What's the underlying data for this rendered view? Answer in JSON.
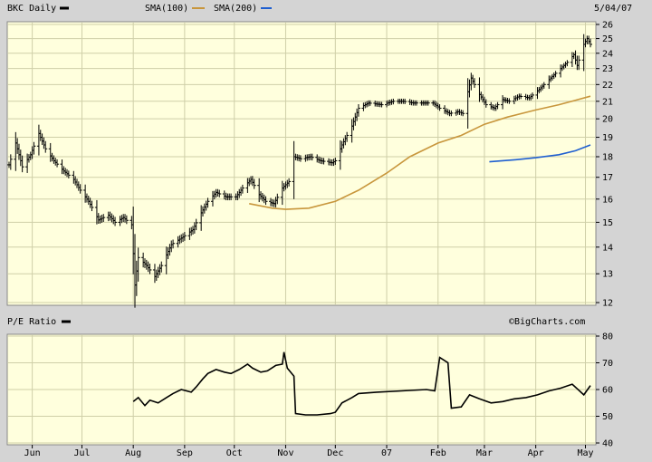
{
  "header": {
    "symbol_label": "BKC Daily",
    "sma100_label": "SMA(100)",
    "sma200_label": "SMA(200)",
    "date_label": "5/04/07"
  },
  "lower_panel": {
    "title": "P/E Ratio",
    "watermark": "©BigCharts.com"
  },
  "colors": {
    "plot_background": "#ffffdd",
    "grid": "#cfcfa8",
    "panel_background": "#d4d4d4",
    "price_bars": "#000000",
    "sma100": "#c8963c",
    "sma200": "#1f5fd0",
    "pe_line": "#000000"
  },
  "chart_data": [
    {
      "type": "ohlc",
      "title": "BKC Daily",
      "x_axis": {
        "type": "date",
        "range": [
          "2006-05-18",
          "2007-05-04"
        ],
        "tick_labels": [
          "Jun",
          "Jul",
          "Aug",
          "Sep",
          "Oct",
          "Nov",
          "Dec",
          "07",
          "Feb",
          "Mar",
          "Apr",
          "May"
        ],
        "tick_dates": [
          "2006-06-01",
          "2006-07-01",
          "2006-08-01",
          "2006-09-01",
          "2006-10-01",
          "2006-11-01",
          "2006-12-01",
          "2007-01-01",
          "2007-02-01",
          "2007-03-01",
          "2007-04-01",
          "2007-05-01"
        ]
      },
      "y_axis": {
        "scale": "log",
        "range": [
          12,
          26
        ],
        "position": "right",
        "tick_labels": [
          12,
          13,
          14,
          15,
          16,
          17,
          18,
          19,
          20,
          21,
          22,
          23,
          24,
          25,
          26
        ]
      },
      "grid": true,
      "legend": "top",
      "series": [
        {
          "name": "BKC Daily",
          "style": "ohlc-bars",
          "key_points": [
            [
              "2006-05-18",
              17.6
            ],
            [
              "2006-05-22",
              18.7
            ],
            [
              "2006-05-26",
              17.5
            ],
            [
              "2006-05-31",
              18.1
            ],
            [
              "2006-06-05",
              19.2
            ],
            [
              "2006-06-09",
              18.4
            ],
            [
              "2006-06-14",
              17.8
            ],
            [
              "2006-06-20",
              17.3
            ],
            [
              "2006-06-26",
              16.9
            ],
            [
              "2006-06-30",
              16.4
            ],
            [
              "2006-07-05",
              15.9
            ],
            [
              "2006-07-11",
              15.1
            ],
            [
              "2006-07-17",
              15.3
            ],
            [
              "2006-07-21",
              15.0
            ],
            [
              "2006-07-26",
              15.2
            ],
            [
              "2006-07-31",
              14.9
            ],
            [
              "2006-08-02",
              12.6
            ],
            [
              "2006-08-04",
              13.6
            ],
            [
              "2006-08-09",
              13.3
            ],
            [
              "2006-08-14",
              12.9
            ],
            [
              "2006-08-18",
              13.3
            ],
            [
              "2006-08-24",
              14.1
            ],
            [
              "2006-08-31",
              14.4
            ],
            [
              "2006-09-06",
              14.7
            ],
            [
              "2006-09-11",
              15.4
            ],
            [
              "2006-09-15",
              15.9
            ],
            [
              "2006-09-20",
              16.3
            ],
            [
              "2006-09-26",
              16.1
            ],
            [
              "2006-10-02",
              16.1
            ],
            [
              "2006-10-06",
              16.5
            ],
            [
              "2006-10-11",
              16.9
            ],
            [
              "2006-10-16",
              16.2
            ],
            [
              "2006-10-20",
              15.9
            ],
            [
              "2006-10-25",
              15.8
            ],
            [
              "2006-10-30",
              16.5
            ],
            [
              "2006-11-03",
              16.8
            ],
            [
              "2006-11-06",
              18.0
            ],
            [
              "2006-11-10",
              17.9
            ],
            [
              "2006-11-16",
              18.0
            ],
            [
              "2006-11-22",
              17.8
            ],
            [
              "2006-11-29",
              17.7
            ],
            [
              "2006-12-01",
              17.8
            ],
            [
              "2006-12-05",
              18.6
            ],
            [
              "2006-12-11",
              19.6
            ],
            [
              "2006-12-15",
              20.6
            ],
            [
              "2006-12-21",
              20.9
            ],
            [
              "2006-12-29",
              20.8
            ],
            [
              "2007-01-05",
              21.0
            ],
            [
              "2007-01-11",
              21.0
            ],
            [
              "2007-01-17",
              20.9
            ],
            [
              "2007-01-23",
              20.9
            ],
            [
              "2007-01-29",
              20.9
            ],
            [
              "2007-02-02",
              20.6
            ],
            [
              "2007-02-08",
              20.3
            ],
            [
              "2007-02-13",
              20.4
            ],
            [
              "2007-02-16",
              20.3
            ],
            [
              "2007-02-21",
              22.4
            ],
            [
              "2007-02-26",
              21.4
            ],
            [
              "2007-03-02",
              20.8
            ],
            [
              "2007-03-07",
              20.6
            ],
            [
              "2007-03-12",
              21.1
            ],
            [
              "2007-03-16",
              21.0
            ],
            [
              "2007-03-22",
              21.3
            ],
            [
              "2007-03-28",
              21.2
            ],
            [
              "2007-04-03",
              21.7
            ],
            [
              "2007-04-10",
              22.4
            ],
            [
              "2007-04-16",
              23.0
            ],
            [
              "2007-04-20",
              23.4
            ],
            [
              "2007-04-24",
              23.9
            ],
            [
              "2007-04-26",
              23.2
            ],
            [
              "2007-04-30",
              24.6
            ],
            [
              "2007-05-02",
              25.0
            ],
            [
              "2007-05-04",
              24.6
            ]
          ]
        },
        {
          "name": "SMA(100)",
          "style": "line",
          "points": [
            [
              "2006-10-10",
              15.8
            ],
            [
              "2006-10-24",
              15.6
            ],
            [
              "2006-11-01",
              15.55
            ],
            [
              "2006-11-15",
              15.6
            ],
            [
              "2006-12-01",
              15.9
            ],
            [
              "2006-12-15",
              16.4
            ],
            [
              "2007-01-01",
              17.2
            ],
            [
              "2007-01-15",
              18.0
            ],
            [
              "2007-02-01",
              18.7
            ],
            [
              "2007-02-15",
              19.1
            ],
            [
              "2007-03-01",
              19.7
            ],
            [
              "2007-03-15",
              20.1
            ],
            [
              "2007-04-01",
              20.5
            ],
            [
              "2007-04-15",
              20.8
            ],
            [
              "2007-05-04",
              21.3
            ]
          ]
        },
        {
          "name": "SMA(200)",
          "style": "line",
          "points": [
            [
              "2007-03-04",
              17.75
            ],
            [
              "2007-03-20",
              17.85
            ],
            [
              "2007-04-01",
              17.95
            ],
            [
              "2007-04-15",
              18.1
            ],
            [
              "2007-04-25",
              18.3
            ],
            [
              "2007-05-04",
              18.6
            ]
          ]
        }
      ]
    },
    {
      "type": "line",
      "title": "P/E Ratio",
      "x_axis": {
        "type": "date",
        "range": [
          "2006-05-18",
          "2007-05-04"
        ],
        "tick_labels": [
          "Jun",
          "Jul",
          "Aug",
          "Sep",
          "Oct",
          "Nov",
          "Dec",
          "07",
          "Feb",
          "Mar",
          "Apr",
          "May"
        ]
      },
      "y_axis": {
        "range": [
          40,
          80
        ],
        "position": "right",
        "tick_labels": [
          40,
          50,
          60,
          70,
          80
        ]
      },
      "grid": true,
      "series": [
        {
          "name": "P/E Ratio",
          "points": [
            [
              "2006-08-01",
              55.5
            ],
            [
              "2006-08-04",
              57.0
            ],
            [
              "2006-08-08",
              54.0
            ],
            [
              "2006-08-11",
              56.0
            ],
            [
              "2006-08-16",
              55.0
            ],
            [
              "2006-08-21",
              57.0
            ],
            [
              "2006-08-25",
              58.5
            ],
            [
              "2006-08-30",
              60.0
            ],
            [
              "2006-09-05",
              59.0
            ],
            [
              "2006-09-08",
              61.0
            ],
            [
              "2006-09-12",
              64.0
            ],
            [
              "2006-09-15",
              66.0
            ],
            [
              "2006-09-20",
              67.5
            ],
            [
              "2006-09-25",
              66.5
            ],
            [
              "2006-09-29",
              66.0
            ],
            [
              "2006-10-04",
              67.5
            ],
            [
              "2006-10-09",
              69.5
            ],
            [
              "2006-10-12",
              68.0
            ],
            [
              "2006-10-17",
              66.5
            ],
            [
              "2006-10-21",
              67.0
            ],
            [
              "2006-10-26",
              69.0
            ],
            [
              "2006-10-30",
              69.5
            ],
            [
              "2006-10-31",
              74.0
            ],
            [
              "2006-11-02",
              68.0
            ],
            [
              "2006-11-06",
              65.0
            ],
            [
              "2006-11-07",
              51.0
            ],
            [
              "2006-11-13",
              50.5
            ],
            [
              "2006-11-20",
              50.5
            ],
            [
              "2006-11-28",
              51.0
            ],
            [
              "2006-12-01",
              51.5
            ],
            [
              "2006-12-05",
              55.0
            ],
            [
              "2006-12-11",
              57.0
            ],
            [
              "2006-12-15",
              58.5
            ],
            [
              "2006-12-26",
              59.0
            ],
            [
              "2007-01-10",
              59.5
            ],
            [
              "2007-01-25",
              60.0
            ],
            [
              "2007-01-30",
              59.5
            ],
            [
              "2007-02-02",
              72.0
            ],
            [
              "2007-02-07",
              70.0
            ],
            [
              "2007-02-09",
              53.0
            ],
            [
              "2007-02-15",
              53.5
            ],
            [
              "2007-02-20",
              58.0
            ],
            [
              "2007-02-26",
              56.5
            ],
            [
              "2007-03-05",
              55.0
            ],
            [
              "2007-03-12",
              55.5
            ],
            [
              "2007-03-19",
              56.5
            ],
            [
              "2007-03-26",
              57.0
            ],
            [
              "2007-04-02",
              58.0
            ],
            [
              "2007-04-09",
              59.5
            ],
            [
              "2007-04-16",
              60.5
            ],
            [
              "2007-04-23",
              62.0
            ],
            [
              "2007-04-30",
              58.0
            ],
            [
              "2007-05-04",
              61.5
            ]
          ]
        }
      ]
    }
  ]
}
